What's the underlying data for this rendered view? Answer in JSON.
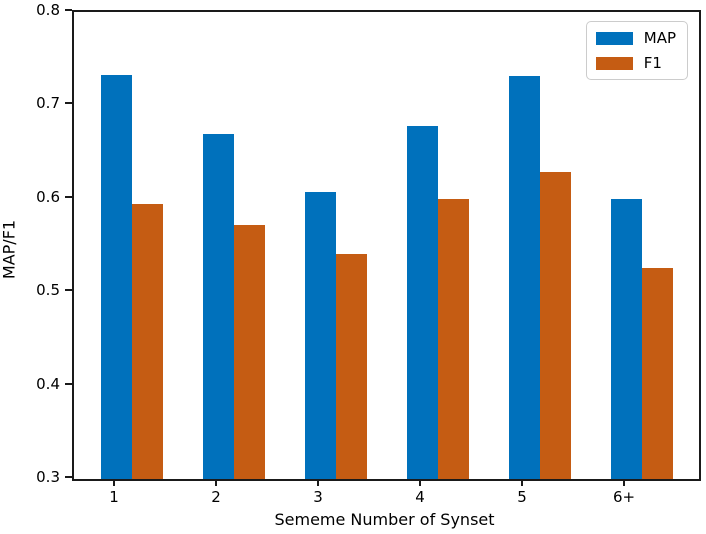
{
  "chart_data": {
    "type": "bar",
    "categories": [
      "1",
      "2",
      "3",
      "4",
      "5",
      "6+"
    ],
    "series": [
      {
        "name": "MAP",
        "color": "#0071BC",
        "values": [
          0.733,
          0.669,
          0.607,
          0.678,
          0.731,
          0.6
        ]
      },
      {
        "name": "F1",
        "color": "#C55C13",
        "values": [
          0.594,
          0.572,
          0.541,
          0.6,
          0.629,
          0.526
        ]
      }
    ],
    "title": "",
    "xlabel": "Sememe Number of Synset",
    "ylabel": "MAP/F1",
    "ylim": [
      0.3,
      0.8
    ],
    "yticks": [
      "0.3",
      "0.4",
      "0.5",
      "0.6",
      "0.7",
      "0.8"
    ],
    "grid": false,
    "legend_position": "upper right"
  }
}
